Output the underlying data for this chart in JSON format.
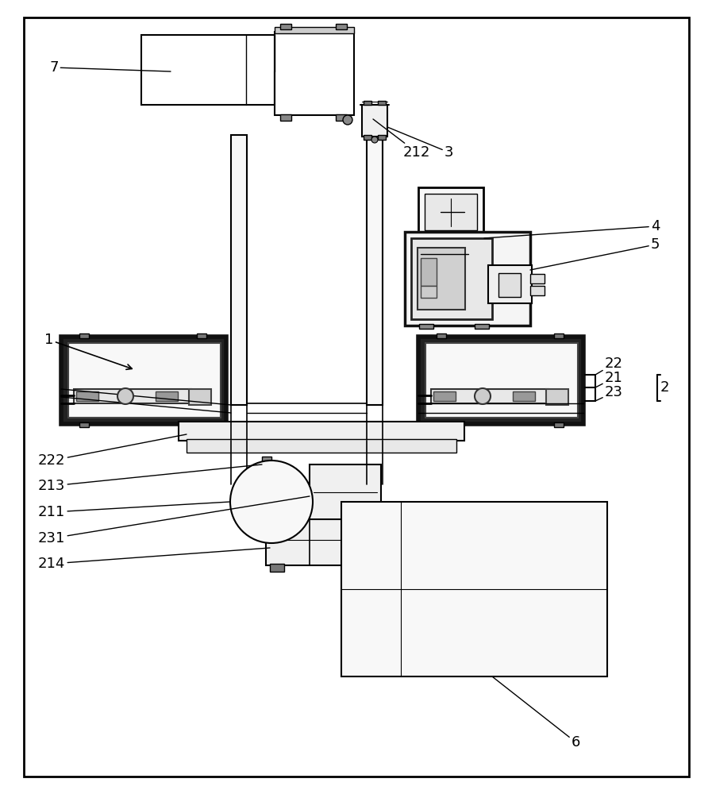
{
  "bg_color": "#ffffff",
  "lc": "#000000",
  "gray1": "#f0f0f0",
  "gray2": "#e0e0e0",
  "dark": "#111111",
  "label_fs": 13
}
